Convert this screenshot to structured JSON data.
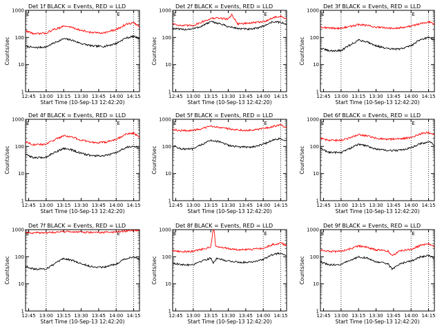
{
  "figure": {
    "xtick_labels": [
      "12:45",
      "13:00",
      "13:15",
      "13:30",
      "13:45",
      "14:00",
      "14:15"
    ],
    "ytick_labels": [
      "1",
      "10",
      "100",
      "1000"
    ],
    "xlabel": "Start Time (10-Sep-13 12:42:20)",
    "ylabel": "Counts/sec",
    "marker_label": "E",
    "colors": {
      "events": "#000000",
      "lld": "#ff0000"
    }
  },
  "chart_data": [
    {
      "type": "line",
      "title": "Det 1f BLACK = Events, RED = LLD",
      "x_range": [
        "12:42:20",
        "14:20"
      ],
      "y_scale": "log",
      "ylim": [
        1,
        1000
      ],
      "markers": [
        "12:42:20",
        "13:00",
        "14:00",
        "14:15"
      ],
      "series": [
        {
          "name": "Events",
          "color": "#000000",
          "x": [
            "12:42",
            "12:50",
            "13:00",
            "13:05",
            "13:15",
            "13:22",
            "13:30",
            "13:40",
            "13:50",
            "14:00",
            "14:08",
            "14:15",
            "14:20"
          ],
          "values": [
            48,
            42,
            45,
            58,
            90,
            80,
            60,
            48,
            47,
            60,
            95,
            110,
            92
          ]
        },
        {
          "name": "LLD",
          "color": "#ff0000",
          "x": [
            "12:42",
            "12:50",
            "13:00",
            "13:05",
            "13:15",
            "13:22",
            "13:30",
            "13:40",
            "13:50",
            "14:00",
            "14:08",
            "14:15",
            "14:20"
          ],
          "values": [
            180,
            135,
            145,
            185,
            260,
            240,
            180,
            150,
            150,
            195,
            300,
            350,
            250
          ]
        }
      ]
    },
    {
      "type": "line",
      "title": "Det 2f BLACK = Events, RED = LLD",
      "x_range": [
        "12:42:20",
        "14:20"
      ],
      "y_scale": "log",
      "ylim": [
        1,
        1000
      ],
      "markers": [
        "12:42:20",
        "13:00",
        "14:00",
        "14:15"
      ],
      "series": [
        {
          "name": "Events",
          "color": "#000000",
          "x": [
            "12:42",
            "12:50",
            "13:00",
            "13:05",
            "13:15",
            "13:22",
            "13:30",
            "13:40",
            "13:50",
            "14:00",
            "14:08",
            "14:15",
            "14:20"
          ],
          "values": [
            220,
            195,
            210,
            240,
            380,
            330,
            250,
            210,
            200,
            260,
            380,
            360,
            300
          ]
        },
        {
          "name": "LLD",
          "color": "#ff0000",
          "x": [
            "12:42",
            "12:50",
            "13:00",
            "13:05",
            "13:15",
            "13:22",
            "13:30",
            "13:33",
            "13:38",
            "13:45",
            "14:00",
            "14:10",
            "14:15",
            "14:20"
          ],
          "values": [
            330,
            270,
            280,
            340,
            500,
            520,
            480,
            700,
            320,
            330,
            380,
            560,
            600,
            500
          ]
        }
      ]
    },
    {
      "type": "line",
      "title": "Det 3f BLACK = Events, RED = LLD",
      "x_range": [
        "12:42:20",
        "14:20"
      ],
      "y_scale": "log",
      "ylim": [
        1,
        1000
      ],
      "markers": [
        "12:42:20",
        "13:00",
        "14:00",
        "14:15"
      ],
      "series": [
        {
          "name": "Events",
          "color": "#000000",
          "x": [
            "12:42",
            "12:50",
            "13:00",
            "13:05",
            "13:15",
            "13:22",
            "13:30",
            "13:40",
            "13:50",
            "14:00",
            "14:08",
            "14:15",
            "14:20"
          ],
          "values": [
            40,
            32,
            33,
            45,
            80,
            70,
            50,
            38,
            37,
            50,
            85,
            100,
            80
          ]
        },
        {
          "name": "LLD",
          "color": "#ff0000",
          "x": [
            "12:42",
            "12:50",
            "13:00",
            "13:05",
            "13:15",
            "13:22",
            "13:30",
            "13:40",
            "13:50",
            "14:00",
            "14:08",
            "14:15",
            "14:20"
          ],
          "values": [
            250,
            220,
            220,
            240,
            300,
            280,
            240,
            220,
            230,
            260,
            330,
            380,
            320
          ]
        }
      ]
    },
    {
      "type": "line",
      "title": "Det 4f BLACK = Events, RED = LLD",
      "x_range": [
        "12:42:20",
        "14:20"
      ],
      "y_scale": "log",
      "ylim": [
        1,
        1000
      ],
      "markers": [
        "12:42:20",
        "13:00",
        "14:00",
        "14:15"
      ],
      "series": [
        {
          "name": "Events",
          "color": "#000000",
          "x": [
            "12:42",
            "12:50",
            "13:00",
            "13:05",
            "13:15",
            "13:22",
            "13:30",
            "13:40",
            "13:50",
            "14:00",
            "14:08",
            "14:15",
            "14:20"
          ],
          "values": [
            50,
            38,
            40,
            55,
            85,
            75,
            55,
            45,
            45,
            58,
            90,
            105,
            80
          ]
        },
        {
          "name": "LLD",
          "color": "#ff0000",
          "x": [
            "12:42",
            "12:50",
            "13:00",
            "13:05",
            "13:15",
            "13:22",
            "13:30",
            "13:40",
            "13:50",
            "14:00",
            "14:08",
            "14:15",
            "14:20"
          ],
          "values": [
            150,
            115,
            120,
            160,
            250,
            225,
            170,
            140,
            140,
            180,
            280,
            310,
            220
          ]
        }
      ]
    },
    {
      "type": "line",
      "title": "Det 5f BLACK = Events, RED = LLD",
      "x_range": [
        "12:42:20",
        "14:20"
      ],
      "y_scale": "log",
      "ylim": [
        1,
        1000
      ],
      "markers": [
        "12:42:20",
        "13:00",
        "14:00",
        "14:15"
      ],
      "series": [
        {
          "name": "Events",
          "color": "#000000",
          "x": [
            "12:42",
            "12:50",
            "13:00",
            "13:05",
            "13:15",
            "13:22",
            "13:30",
            "13:40",
            "13:50",
            "14:00",
            "14:08",
            "14:15",
            "14:20"
          ],
          "values": [
            110,
            80,
            80,
            105,
            170,
            150,
            110,
            95,
            95,
            120,
            170,
            195,
            155
          ]
        },
        {
          "name": "LLD",
          "color": "#ff0000",
          "x": [
            "12:42",
            "12:50",
            "13:00",
            "13:05",
            "13:15",
            "13:22",
            "13:30",
            "13:40",
            "13:50",
            "14:00",
            "14:08",
            "14:15",
            "14:20"
          ],
          "values": [
            420,
            380,
            390,
            430,
            550,
            520,
            450,
            400,
            400,
            450,
            550,
            620,
            500
          ]
        }
      ]
    },
    {
      "type": "line",
      "title": "Det 6f BLACK = Events, RED = LLD",
      "x_range": [
        "12:42:20",
        "14:20"
      ],
      "y_scale": "log",
      "ylim": [
        1,
        1000
      ],
      "markers": [
        "12:42:20",
        "13:00",
        "14:00",
        "14:15"
      ],
      "series": [
        {
          "name": "Events",
          "color": "#000000",
          "x": [
            "12:42",
            "12:50",
            "13:00",
            "13:05",
            "13:15",
            "13:22",
            "13:30",
            "13:40",
            "13:50",
            "14:00",
            "14:08",
            "14:15",
            "14:20"
          ],
          "values": [
            85,
            60,
            60,
            75,
            120,
            105,
            80,
            70,
            72,
            90,
            125,
            150,
            115
          ]
        },
        {
          "name": "LLD",
          "color": "#ff0000",
          "x": [
            "12:42",
            "12:50",
            "13:00",
            "13:05",
            "13:15",
            "13:22",
            "13:30",
            "13:40",
            "13:50",
            "14:00",
            "14:08",
            "14:15",
            "14:20"
          ],
          "values": [
            200,
            165,
            170,
            190,
            270,
            245,
            200,
            185,
            190,
            215,
            290,
            330,
            260
          ]
        }
      ]
    },
    {
      "type": "line",
      "title": "Det 7f BLACK = Events, RED = LLD",
      "x_range": [
        "12:42:20",
        "14:20"
      ],
      "y_scale": "log",
      "ylim": [
        1,
        1000
      ],
      "markers": [
        "12:42:20",
        "13:00",
        "14:00",
        "14:15"
      ],
      "series": [
        {
          "name": "Events",
          "color": "#000000",
          "x": [
            "12:42",
            "12:50",
            "13:00",
            "13:05",
            "13:15",
            "13:22",
            "13:30",
            "13:40",
            "13:50",
            "14:00",
            "14:08",
            "14:15",
            "14:20"
          ],
          "values": [
            45,
            35,
            36,
            48,
            85,
            75,
            55,
            42,
            42,
            55,
            85,
            100,
            80
          ]
        },
        {
          "name": "LLD",
          "color": "#ff0000",
          "x": [
            "12:42",
            "12:50",
            "13:00",
            "13:05",
            "13:15",
            "13:22",
            "13:30",
            "13:40",
            "13:50",
            "14:00",
            "14:08",
            "14:15",
            "14:20"
          ],
          "values": [
            780,
            760,
            770,
            790,
            850,
            830,
            800,
            790,
            800,
            820,
            880,
            950,
            900
          ]
        }
      ]
    },
    {
      "type": "line",
      "title": "Det 8f BLACK = Events, RED = LLD",
      "x_range": [
        "12:42:20",
        "14:20"
      ],
      "y_scale": "log",
      "ylim": [
        1,
        1000
      ],
      "markers": [
        "12:42:20",
        "13:00",
        "14:00",
        "14:15"
      ],
      "series": [
        {
          "name": "Events",
          "color": "#000000",
          "x": [
            "12:42",
            "12:50",
            "13:00",
            "13:05",
            "13:15",
            "13:17",
            "13:20",
            "13:30",
            "13:40",
            "13:50",
            "14:00",
            "14:08",
            "14:15",
            "14:20"
          ],
          "values": [
            60,
            50,
            52,
            65,
            90,
            60,
            85,
            70,
            62,
            65,
            80,
            120,
            140,
            110
          ]
        },
        {
          "name": "LLD",
          "color": "#ff0000",
          "x": [
            "12:42",
            "12:50",
            "13:00",
            "13:05",
            "13:15",
            "13:17",
            "13:18",
            "13:19",
            "13:20",
            "13:30",
            "13:40",
            "13:50",
            "14:00",
            "14:08",
            "14:15",
            "14:20"
          ],
          "values": [
            170,
            155,
            160,
            180,
            230,
            1000,
            1000,
            240,
            240,
            200,
            180,
            185,
            210,
            280,
            320,
            260
          ]
        }
      ]
    },
    {
      "type": "line",
      "title": "Det 9f BLACK = Events, RED = LLD",
      "x_range": [
        "12:42:20",
        "14:20"
      ],
      "y_scale": "log",
      "ylim": [
        1,
        1000
      ],
      "markers": [
        "12:42:20",
        "13:00",
        "14:00",
        "14:15"
      ],
      "series": [
        {
          "name": "Events",
          "color": "#000000",
          "x": [
            "12:42",
            "12:50",
            "13:00",
            "13:05",
            "13:15",
            "13:22",
            "13:30",
            "13:40",
            "13:44",
            "13:50",
            "14:00",
            "14:08",
            "14:15",
            "14:20"
          ],
          "values": [
            65,
            50,
            52,
            65,
            100,
            90,
            65,
            55,
            35,
            55,
            70,
            100,
            110,
            90
          ]
        },
        {
          "name": "LLD",
          "color": "#ff0000",
          "x": [
            "12:42",
            "12:50",
            "13:00",
            "13:05",
            "13:15",
            "13:22",
            "13:30",
            "13:40",
            "13:44",
            "13:50",
            "14:00",
            "14:08",
            "14:15",
            "14:20"
          ],
          "values": [
            180,
            155,
            160,
            180,
            250,
            225,
            180,
            165,
            110,
            165,
            190,
            260,
            300,
            240
          ]
        }
      ]
    }
  ]
}
